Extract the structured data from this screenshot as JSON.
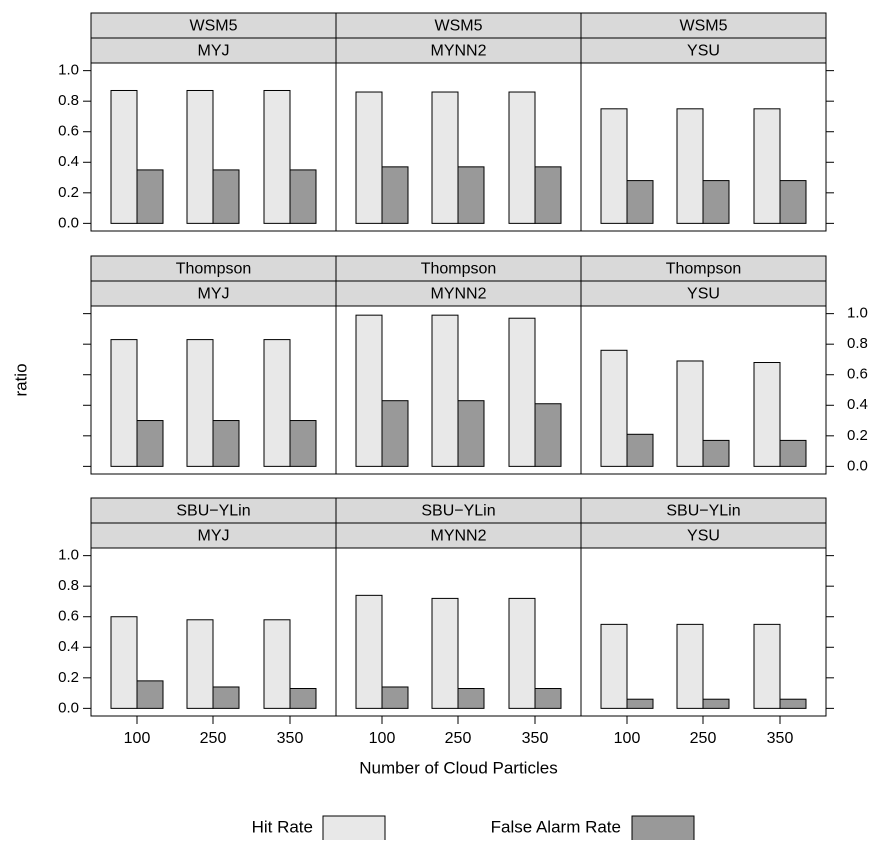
{
  "chart_data": {
    "type": "bar",
    "xlabel": "Number of Cloud Particles",
    "ylabel": "ratio",
    "ylim": [
      -0.05,
      1.05
    ],
    "yticks": [
      0.0,
      0.2,
      0.4,
      0.6,
      0.8,
      1.0
    ],
    "ytick_labels": [
      "0.0",
      "0.2",
      "0.4",
      "0.6",
      "0.8",
      "1.0"
    ],
    "categories": [
      "100",
      "250",
      "350"
    ],
    "legend": {
      "placement": "bottom",
      "entries": [
        {
          "name": "Hit Rate",
          "color": "#e8e8e8"
        },
        {
          "name": "False Alarm Rate",
          "color": "#999999"
        }
      ]
    },
    "rows": [
      {
        "label": "WSM5",
        "panels": [
          {
            "strip_top": "WSM5",
            "strip_bottom": "MYJ",
            "hit_rate": [
              0.87,
              0.87,
              0.87
            ],
            "false_alarm_rate": [
              0.35,
              0.35,
              0.35
            ]
          },
          {
            "strip_top": "WSM5",
            "strip_bottom": "MYNN2",
            "hit_rate": [
              0.86,
              0.86,
              0.86
            ],
            "false_alarm_rate": [
              0.37,
              0.37,
              0.37
            ]
          },
          {
            "strip_top": "WSM5",
            "strip_bottom": "YSU",
            "hit_rate": [
              0.75,
              0.75,
              0.75
            ],
            "false_alarm_rate": [
              0.28,
              0.28,
              0.28
            ]
          }
        ]
      },
      {
        "label": "Thompson",
        "panels": [
          {
            "strip_top": "Thompson",
            "strip_bottom": "MYJ",
            "hit_rate": [
              0.83,
              0.83,
              0.83
            ],
            "false_alarm_rate": [
              0.3,
              0.3,
              0.3
            ]
          },
          {
            "strip_top": "Thompson",
            "strip_bottom": "MYNN2",
            "hit_rate": [
              0.99,
              0.99,
              0.97
            ],
            "false_alarm_rate": [
              0.43,
              0.43,
              0.41
            ]
          },
          {
            "strip_top": "Thompson",
            "strip_bottom": "YSU",
            "hit_rate": [
              0.76,
              0.69,
              0.68
            ],
            "false_alarm_rate": [
              0.21,
              0.17,
              0.17
            ]
          }
        ]
      },
      {
        "label": "SBU-YLin",
        "panels": [
          {
            "strip_top": "SBU−YLin",
            "strip_bottom": "MYJ",
            "hit_rate": [
              0.6,
              0.58,
              0.58
            ],
            "false_alarm_rate": [
              0.18,
              0.14,
              0.13
            ]
          },
          {
            "strip_top": "SBU−YLin",
            "strip_bottom": "MYNN2",
            "hit_rate": [
              0.74,
              0.72,
              0.72
            ],
            "false_alarm_rate": [
              0.14,
              0.13,
              0.13
            ]
          },
          {
            "strip_top": "SBU−YLin",
            "strip_bottom": "YSU",
            "hit_rate": [
              0.55,
              0.55,
              0.55
            ],
            "false_alarm_rate": [
              0.06,
              0.06,
              0.06
            ]
          }
        ]
      }
    ]
  }
}
